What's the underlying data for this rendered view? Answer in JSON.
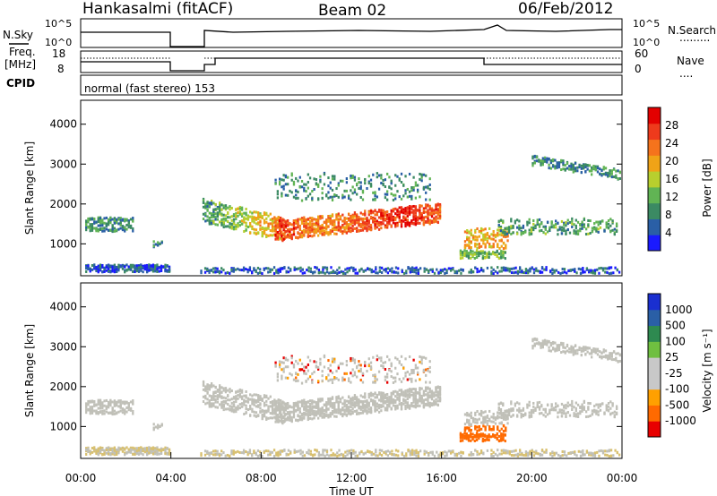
{
  "header": {
    "station": "Hankasalmi (fitACF)",
    "beam": "Beam 02",
    "date": "06/Feb/2012"
  },
  "nsky_panel": {
    "left_label": "N.Sky",
    "left_ticks": [
      "10^5",
      "10^0"
    ],
    "right_ticks": [
      "10^5",
      "10^0"
    ],
    "right_label": "N.Search",
    "right_legend": "........."
  },
  "freq_panel": {
    "left_label_1": "Freq.",
    "left_label_2": "[MHz]",
    "left_ticks": [
      "18",
      "8"
    ],
    "right_ticks": [
      "60",
      "0"
    ],
    "right_label": "Nave",
    "right_legend": "....",
    "cpid_label": "CPID"
  },
  "cpid_panel": {
    "text": "normal (fast stereo)  153"
  },
  "colors": {
    "power_scale": [
      "#1a1aff",
      "#2a5fa6",
      "#3b8a63",
      "#61b454",
      "#b8cf2e",
      "#f0a317",
      "#f5731c",
      "#ee3a1c",
      "#e30000"
    ],
    "velocity_scale": [
      "#e80000",
      "#ff6a00",
      "#ffa000",
      "#c8c8c8",
      "#c8c8c8",
      "#6fbf40",
      "#2e8a50",
      "#2a5fa6",
      "#1a2fd0"
    ],
    "ground_scatter": "#c0c0b8"
  },
  "chart_data": [
    {
      "type": "heatmap",
      "name": "power",
      "ylabel": "Slant Range [km]",
      "yticks": [
        1000,
        2000,
        3000,
        4000
      ],
      "ylim": [
        200,
        4600
      ],
      "colorbar": {
        "label": "Power [dB]",
        "ticks": [
          "4",
          "8",
          "12",
          "16",
          "20",
          "24",
          "28"
        ],
        "range": [
          0,
          30
        ]
      }
    },
    {
      "type": "heatmap",
      "name": "velocity",
      "ylabel": "Slant Range [km]",
      "yticks": [
        1000,
        2000,
        3000,
        4000
      ],
      "ylim": [
        200,
        4600
      ],
      "xlabel": "Time UT",
      "xticks": [
        "00:00",
        "04:00",
        "08:00",
        "12:00",
        "16:00",
        "20:00",
        "00:00"
      ],
      "xlim": [
        0,
        24
      ],
      "colorbar": {
        "label": "Velocity [m s⁻¹]",
        "ticks": [
          "1000",
          "500",
          "100",
          "25",
          "-25",
          "-100",
          "-500",
          "-1000"
        ]
      }
    }
  ]
}
